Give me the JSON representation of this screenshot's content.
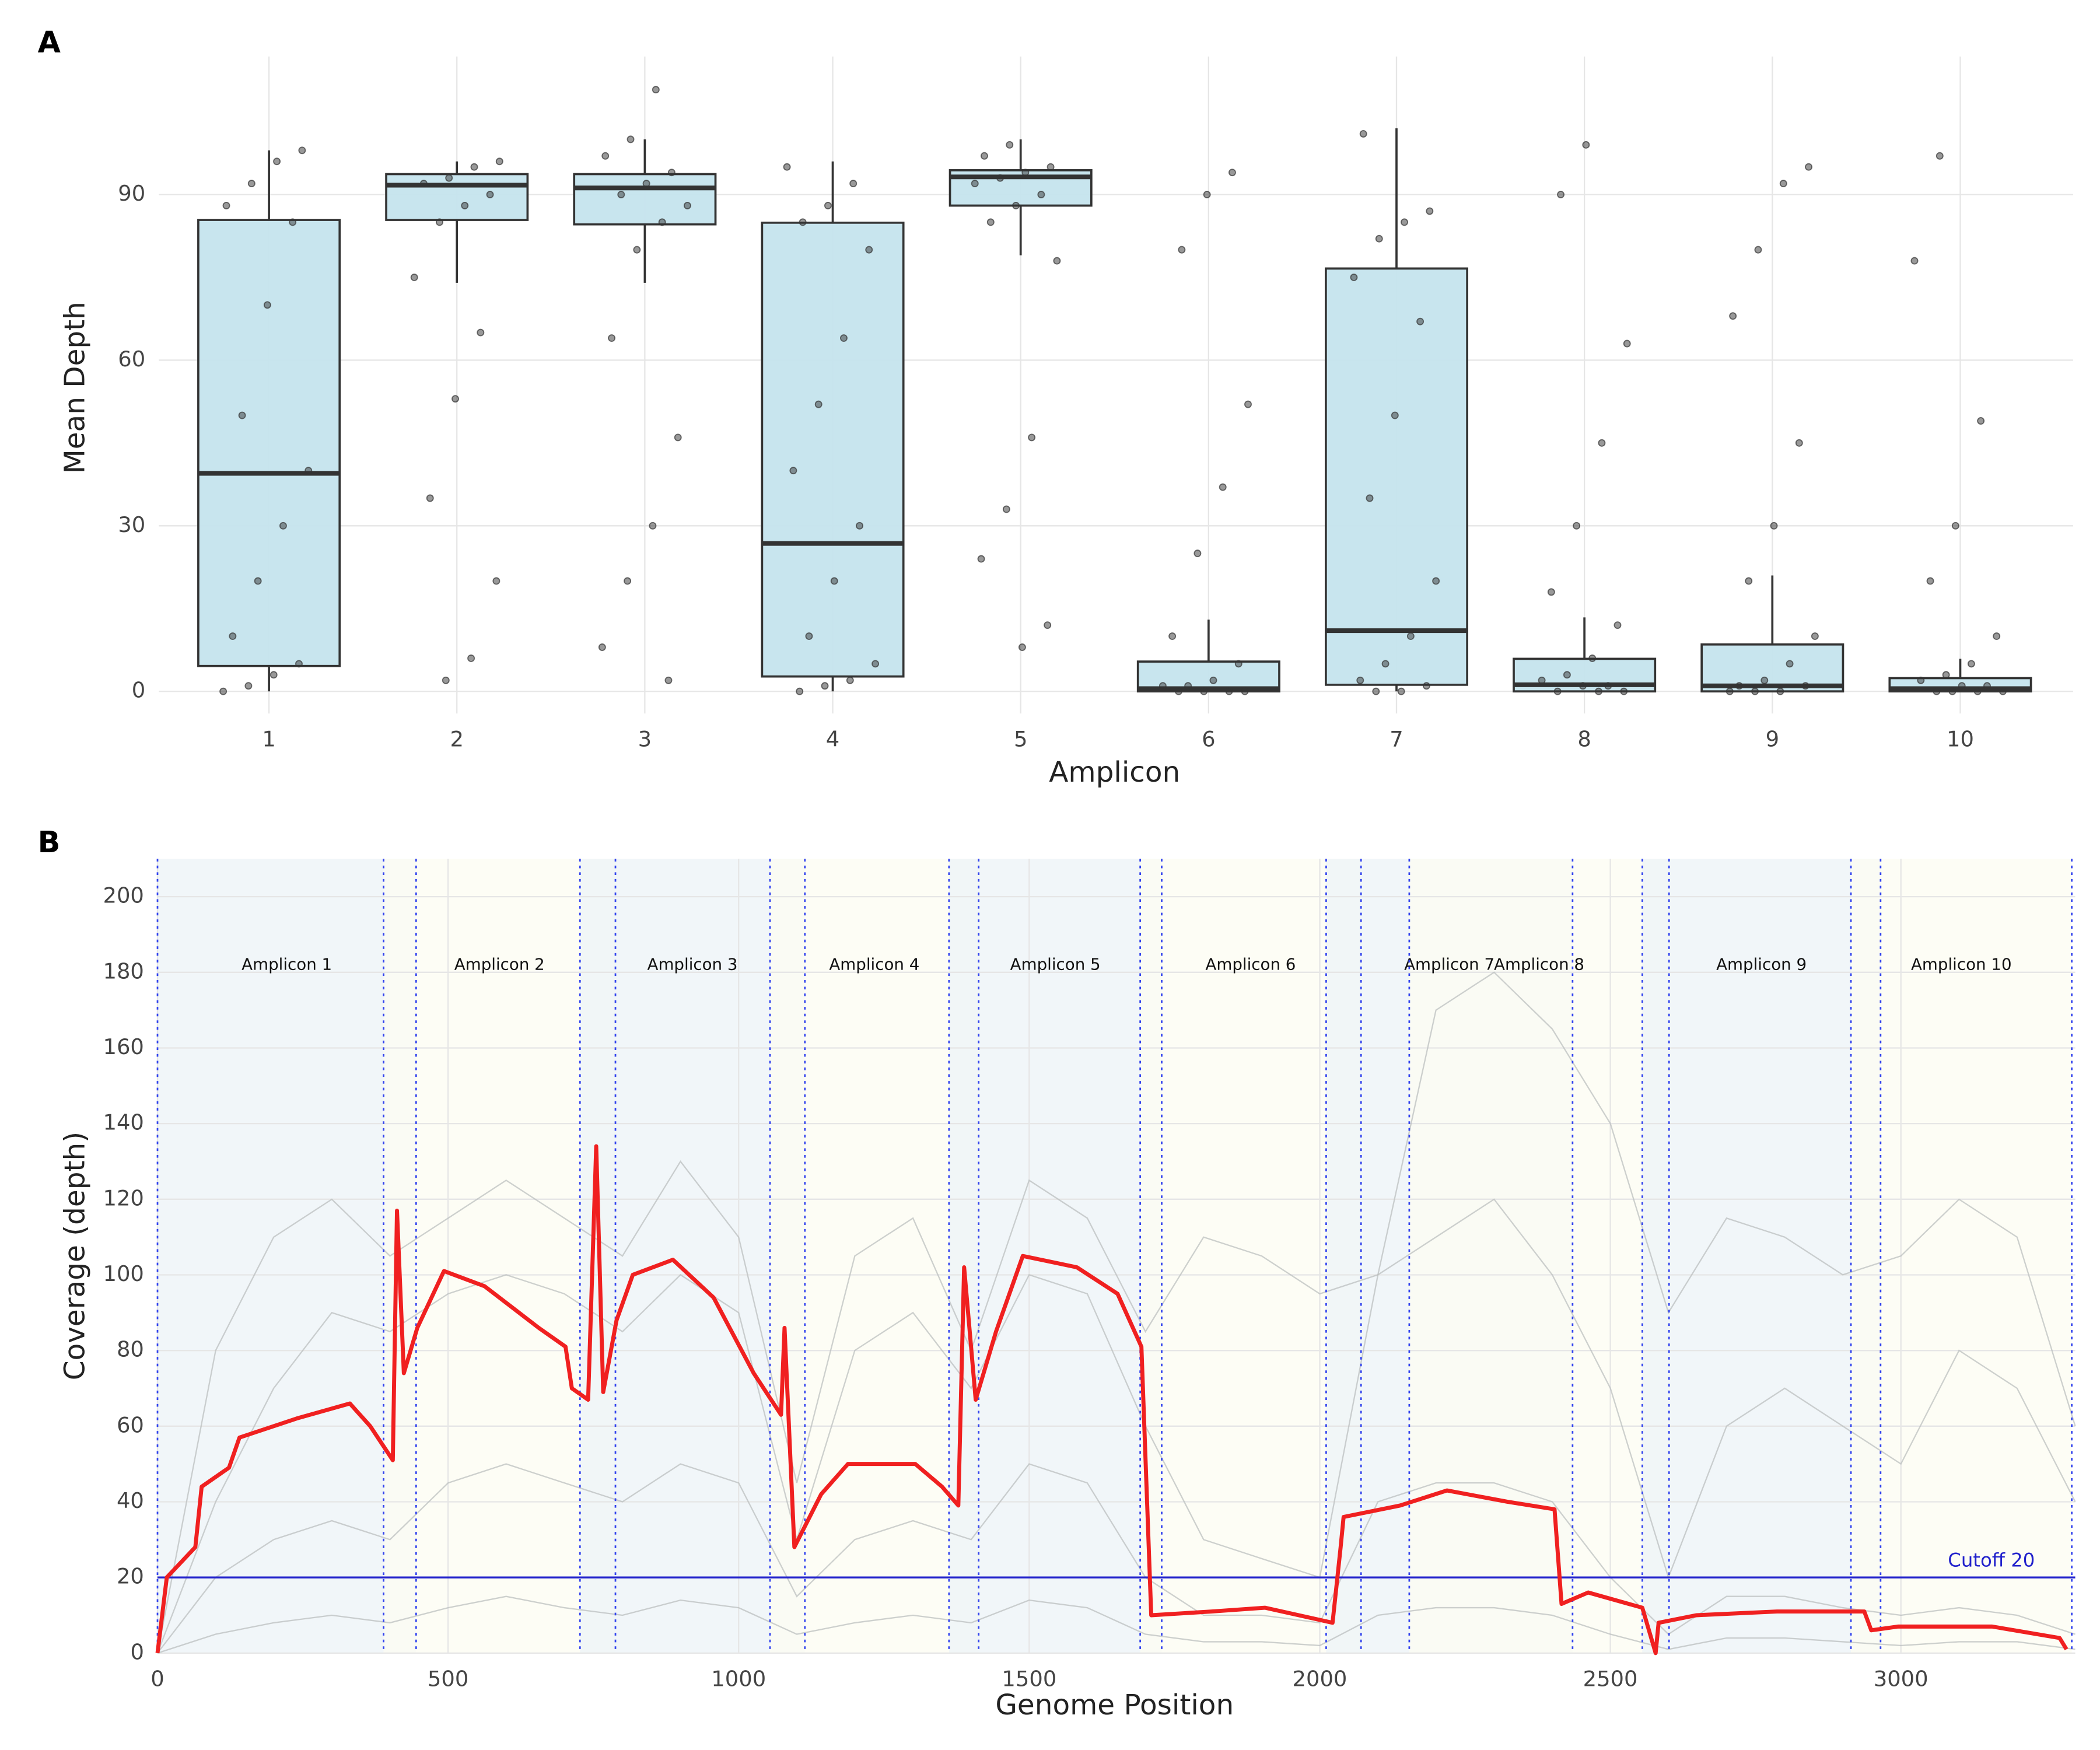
{
  "chart_data": [
    {
      "type": "box",
      "panel": "A",
      "x_label": "Amplicon",
      "y_label": "Mean Depth",
      "categories": [
        "1",
        "2",
        "3",
        "4",
        "5",
        "6",
        "7",
        "8",
        "9",
        "10"
      ],
      "box": {
        "q1": [
          4.6,
          85.4,
          84.6,
          2.7,
          88,
          0,
          1.2,
          0,
          0,
          0
        ],
        "median": [
          39.5,
          91.7,
          91.2,
          26.8,
          93.2,
          0.5,
          11,
          1.2,
          1,
          0.5
        ],
        "q3": [
          85.4,
          93.7,
          93.7,
          84.9,
          94.4,
          5.4,
          76.6,
          5.9,
          8.5,
          2.4
        ],
        "whisker_low": [
          0,
          74,
          74,
          0,
          79,
          0,
          0,
          0,
          0,
          0
        ],
        "whisker_high": [
          98,
          96,
          100,
          96,
          100,
          13,
          102,
          13.4,
          21,
          5.9
        ]
      },
      "points": [
        [
          0,
          1,
          3,
          5,
          10,
          20,
          30,
          40,
          50,
          70,
          85,
          88,
          92,
          96,
          98
        ],
        [
          2,
          6,
          20,
          35,
          53,
          65,
          75,
          85,
          88,
          90,
          92,
          93,
          95,
          96
        ],
        [
          2,
          8,
          20,
          30,
          46,
          64,
          80,
          85,
          88,
          90,
          92,
          94,
          97,
          100,
          109
        ],
        [
          0,
          1,
          2,
          5,
          10,
          20,
          30,
          40,
          52,
          64,
          80,
          85,
          88,
          92,
          95
        ],
        [
          8,
          12,
          24,
          33,
          46,
          78,
          85,
          88,
          90,
          92,
          93,
          94,
          95,
          97,
          99
        ],
        [
          0,
          0,
          0,
          0,
          1,
          1,
          2,
          5,
          10,
          25,
          37,
          52,
          80,
          90,
          94
        ],
        [
          0,
          0,
          1,
          2,
          5,
          10,
          20,
          35,
          50,
          67,
          75,
          82,
          85,
          87,
          101
        ],
        [
          0,
          0,
          0,
          1,
          1,
          2,
          3,
          6,
          12,
          18,
          30,
          45,
          63,
          90,
          99
        ],
        [
          0,
          0,
          0,
          1,
          1,
          2,
          5,
          10,
          20,
          30,
          45,
          68,
          80,
          92,
          95
        ],
        [
          0,
          0,
          0,
          0,
          1,
          1,
          2,
          3,
          5,
          10,
          20,
          30,
          49,
          78,
          97
        ]
      ],
      "ylim": [
        -4,
        115
      ],
      "yticks": [
        0,
        30,
        60,
        90
      ],
      "grid": true,
      "box_color": "#c5e4ed",
      "point_color": "#333333"
    },
    {
      "type": "line",
      "panel": "B",
      "x_label": "Genome Position",
      "y_label": "Coverage (depth)",
      "x": [
        0,
        16,
        65,
        76,
        123,
        141,
        239,
        331,
        366,
        405,
        412,
        424,
        447,
        493,
        563,
        656,
        702,
        713,
        741,
        755,
        767,
        790,
        818,
        887,
        957,
        1026,
        1073,
        1079,
        1096,
        1142,
        1188,
        1304,
        1350,
        1378,
        1388,
        1408,
        1443,
        1489,
        1582,
        1652,
        1693,
        1710,
        1814,
        1906,
        2022,
        2036,
        2041,
        2138,
        2219,
        2323,
        2404,
        2416,
        2462,
        2555,
        2578,
        2583,
        2648,
        2787,
        2937,
        2949,
        2995,
        3157,
        3273,
        3285
      ],
      "series": [
        {
          "color": "#f02020",
          "values": [
            0,
            20,
            28,
            44,
            49,
            57,
            62,
            66,
            60,
            51,
            117,
            74,
            86,
            101,
            97,
            86,
            81,
            70,
            67,
            134,
            69,
            88,
            100,
            104,
            94,
            74,
            63,
            86,
            28,
            42,
            50,
            50,
            44,
            39,
            102,
            67,
            85,
            105,
            102,
            95,
            81,
            10,
            11,
            12,
            8,
            28,
            36,
            39,
            43,
            40,
            38,
            13,
            16,
            12,
            0,
            8,
            10,
            11,
            11,
            6,
            7,
            7,
            4,
            1
          ]
        }
      ],
      "sample_x": [
        0,
        100,
        200,
        300,
        400,
        500,
        600,
        700,
        800,
        900,
        1000,
        1100,
        1200,
        1300,
        1400,
        1500,
        1600,
        1700,
        1800,
        1900,
        2000,
        2100,
        2200,
        2300,
        2400,
        2500,
        2600,
        2700,
        2800,
        2900,
        3000,
        3100,
        3200,
        3300
      ],
      "sample_lines": [
        [
          0,
          80,
          110,
          120,
          105,
          115,
          125,
          115,
          105,
          130,
          110,
          45,
          105,
          115,
          80,
          125,
          115,
          85,
          110,
          105,
          95,
          100,
          170,
          180,
          165,
          140,
          90,
          115,
          110,
          100,
          105,
          120,
          110,
          60
        ],
        [
          0,
          40,
          70,
          90,
          85,
          95,
          100,
          95,
          85,
          100,
          90,
          30,
          80,
          90,
          70,
          100,
          95,
          60,
          30,
          25,
          20,
          100,
          110,
          120,
          100,
          70,
          20,
          60,
          70,
          60,
          50,
          80,
          70,
          40
        ],
        [
          0,
          20,
          30,
          35,
          30,
          45,
          50,
          45,
          40,
          50,
          45,
          15,
          30,
          35,
          30,
          50,
          45,
          20,
          10,
          10,
          8,
          40,
          45,
          45,
          40,
          20,
          5,
          15,
          15,
          12,
          10,
          12,
          10,
          5
        ],
        [
          0,
          5,
          8,
          10,
          8,
          12,
          15,
          12,
          10,
          14,
          12,
          5,
          8,
          10,
          8,
          14,
          12,
          5,
          3,
          3,
          2,
          10,
          12,
          12,
          10,
          5,
          1,
          4,
          4,
          3,
          2,
          3,
          3,
          1
        ]
      ],
      "sample_color": "#b8bcbc",
      "amplicons": [
        {
          "label": "Amplicon 1",
          "start": 0,
          "end": 445
        },
        {
          "label": "Amplicon 2",
          "start": 389,
          "end": 788
        },
        {
          "label": "Amplicon 3",
          "start": 727,
          "end": 1114
        },
        {
          "label": "Amplicon 4",
          "start": 1054,
          "end": 1413
        },
        {
          "label": "Amplicon 5",
          "start": 1362,
          "end": 1728
        },
        {
          "label": "Amplicon 6",
          "start": 1691,
          "end": 2071
        },
        {
          "label": "Amplicon 7",
          "start": 2011,
          "end": 2435
        },
        {
          "label": "Amplicon 8",
          "start": 2154,
          "end": 2601
        },
        {
          "label": "Amplicon 9",
          "start": 2555,
          "end": 2965
        },
        {
          "label": "Amplicon 10",
          "start": 2914,
          "end": 3294
        }
      ],
      "region_colors": [
        "#eef4f8",
        "#fcfcf2"
      ],
      "boundary_color": "#3344ee",
      "cutoff": {
        "value": 20,
        "label": "Cutoff 20",
        "color": "#2222cc"
      },
      "xlim": [
        0,
        3300
      ],
      "xticks": [
        0,
        500,
        1000,
        1500,
        2000,
        2500,
        3000
      ],
      "ylim": [
        0,
        210
      ],
      "yticks": [
        0,
        20,
        40,
        60,
        80,
        100,
        120,
        140,
        160,
        180,
        200
      ],
      "grid": true
    }
  ]
}
